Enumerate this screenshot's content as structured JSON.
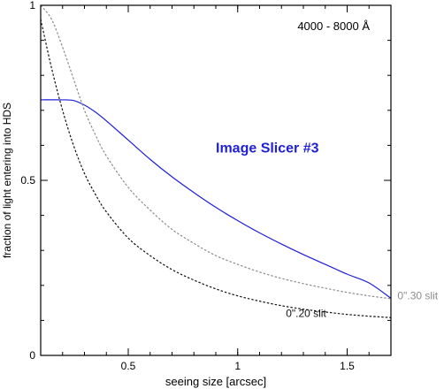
{
  "chart_data": {
    "type": "line",
    "xlabel": "seeing size [arcsec]",
    "ylabel": "fraction of light entering into HDS",
    "xlim": [
      0.1,
      1.7
    ],
    "ylim": [
      0,
      1
    ],
    "x_ticks": [
      {
        "value": 0.5,
        "label": "0.5"
      },
      {
        "value": 1.0,
        "label": "1"
      },
      {
        "value": 1.5,
        "label": "1.5"
      }
    ],
    "y_ticks": [
      {
        "value": 0,
        "label": "0"
      },
      {
        "value": 0.5,
        "label": "0.5"
      },
      {
        "value": 1,
        "label": "1"
      }
    ],
    "grid": false,
    "annotation": "4000 - 8000 Å",
    "series": [
      {
        "name": "Image Slicer #3",
        "color": "#1f1fd6",
        "dash": "solid",
        "x": [
          0.1,
          0.2,
          0.25,
          0.3,
          0.35,
          0.4,
          0.5,
          0.6,
          0.7,
          0.8,
          0.9,
          1.0,
          1.1,
          1.2,
          1.3,
          1.4,
          1.5,
          1.6,
          1.7
        ],
        "y": [
          0.73,
          0.73,
          0.728,
          0.715,
          0.695,
          0.67,
          0.615,
          0.56,
          0.51,
          0.465,
          0.423,
          0.385,
          0.35,
          0.318,
          0.288,
          0.26,
          0.232,
          0.207,
          0.163
        ]
      },
      {
        "name": "0\".30 slit",
        "color": "#8c8c8c",
        "dash": "dotted",
        "x": [
          0.1,
          0.15,
          0.2,
          0.25,
          0.3,
          0.35,
          0.4,
          0.5,
          0.6,
          0.7,
          0.8,
          0.9,
          1.0,
          1.1,
          1.2,
          1.3,
          1.4,
          1.5,
          1.6,
          1.7
        ],
        "y": [
          1.0,
          0.96,
          0.88,
          0.79,
          0.7,
          0.63,
          0.57,
          0.48,
          0.415,
          0.36,
          0.32,
          0.285,
          0.26,
          0.238,
          0.22,
          0.205,
          0.192,
          0.18,
          0.17,
          0.162
        ]
      },
      {
        "name": "0\".20 slit",
        "color": "#111111",
        "dash": "dotted",
        "x": [
          0.1,
          0.15,
          0.2,
          0.25,
          0.3,
          0.35,
          0.4,
          0.5,
          0.6,
          0.7,
          0.8,
          0.9,
          1.0,
          1.1,
          1.2,
          1.3,
          1.4,
          1.5,
          1.6,
          1.7
        ],
        "y": [
          0.96,
          0.82,
          0.7,
          0.6,
          0.52,
          0.46,
          0.41,
          0.335,
          0.285,
          0.245,
          0.215,
          0.19,
          0.17,
          0.155,
          0.142,
          0.132,
          0.124,
          0.117,
          0.112,
          0.108
        ]
      }
    ],
    "labels": [
      {
        "text": "Image Slicer #3",
        "color": "#1f1fd6",
        "x": 0.9,
        "y": 0.58,
        "weight": "bold",
        "size": 16
      },
      {
        "text": "0\".30 slit",
        "color": "#8c8c8c",
        "x": 1.73,
        "y": 0.16,
        "weight": "normal",
        "size": 12
      },
      {
        "text": "0\".20 slit",
        "color": "#111111",
        "x": 1.22,
        "y": 0.11,
        "weight": "normal",
        "size": 12
      }
    ]
  }
}
